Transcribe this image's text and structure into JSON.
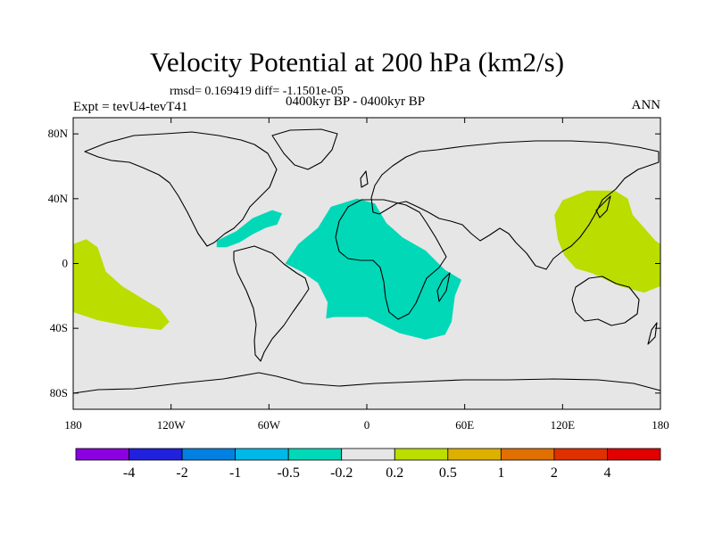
{
  "title": "Velocity Potential at 200 hPa (km2/s)",
  "subtitle": "rmsd= 0.169419 diff= -1.1501e-05",
  "experiment": "Expt = tevU4-tevT41",
  "period": "0400kyr BP - 0400kyr BP",
  "season": "ANN",
  "map": {
    "projection": "cylindrical-equidistant",
    "lon_range": [
      -180,
      180
    ],
    "lat_range": [
      -90,
      90
    ],
    "background_color": "#e6e6e6",
    "x_ticks": [
      {
        "lon": -180,
        "label": "180"
      },
      {
        "lon": -120,
        "label": "120W"
      },
      {
        "lon": -60,
        "label": "60W"
      },
      {
        "lon": 0,
        "label": "0"
      },
      {
        "lon": 60,
        "label": "60E"
      },
      {
        "lon": 120,
        "label": "120E"
      },
      {
        "lon": 180,
        "label": "180"
      }
    ],
    "y_ticks": [
      {
        "lat": 80,
        "label": "80N"
      },
      {
        "lat": 40,
        "label": "40N"
      },
      {
        "lat": 0,
        "label": "0"
      },
      {
        "lat": -40,
        "label": "40S"
      },
      {
        "lat": -80,
        "label": "80S"
      }
    ],
    "regions": [
      {
        "name": "central-pacific-positive",
        "level": "0.2 to 0.5",
        "color": "#bbdd00",
        "lonlat": [
          [
            -180,
            12
          ],
          [
            -172,
            15
          ],
          [
            -165,
            10
          ],
          [
            -160,
            -5
          ],
          [
            -150,
            -14
          ],
          [
            -137,
            -22
          ],
          [
            -127,
            -28
          ],
          [
            -121,
            -36
          ],
          [
            -126,
            -41
          ],
          [
            -145,
            -39
          ],
          [
            -165,
            -35
          ],
          [
            -180,
            -30
          ]
        ]
      },
      {
        "name": "caribbean-negative",
        "level": "-0.5 to -0.2",
        "color": "#00d8b8",
        "lonlat": [
          [
            -92,
            14
          ],
          [
            -80,
            20
          ],
          [
            -70,
            28
          ],
          [
            -58,
            33
          ],
          [
            -52,
            31
          ],
          [
            -55,
            24
          ],
          [
            -62,
            22
          ],
          [
            -70,
            18
          ],
          [
            -78,
            13
          ],
          [
            -86,
            10
          ],
          [
            -92,
            10
          ]
        ]
      },
      {
        "name": "atlantic-africa-negative",
        "level": "-0.5 to -0.2",
        "color": "#00d8b8",
        "lonlat": [
          [
            -50,
            0
          ],
          [
            -42,
            12
          ],
          [
            -30,
            22
          ],
          [
            -22,
            35
          ],
          [
            -6,
            40
          ],
          [
            5,
            37
          ],
          [
            12,
            25
          ],
          [
            22,
            16
          ],
          [
            36,
            8
          ],
          [
            48,
            -4
          ],
          [
            58,
            -10
          ],
          [
            54,
            -20
          ],
          [
            52,
            -36
          ],
          [
            48,
            -44
          ],
          [
            36,
            -47
          ],
          [
            20,
            -43
          ],
          [
            0,
            -33
          ],
          [
            -20,
            -33
          ],
          [
            -25,
            -34
          ],
          [
            -24,
            -24
          ],
          [
            -30,
            -12
          ],
          [
            -40,
            -5
          ],
          [
            -46,
            -2
          ]
        ]
      },
      {
        "name": "west-pacific-positive",
        "level": "0.2 to 0.5",
        "color": "#bbdd00",
        "lonlat": [
          [
            117,
            15
          ],
          [
            115,
            30
          ],
          [
            120,
            39
          ],
          [
            135,
            45
          ],
          [
            152,
            45
          ],
          [
            160,
            40
          ],
          [
            163,
            30
          ],
          [
            170,
            22
          ],
          [
            177,
            14
          ],
          [
            180,
            12
          ],
          [
            180,
            -14
          ],
          [
            170,
            -18
          ],
          [
            155,
            -14
          ],
          [
            138,
            -6
          ],
          [
            128,
            -3
          ],
          [
            121,
            5
          ]
        ]
      }
    ]
  },
  "colorbar": {
    "colors": [
      "#8a00e0",
      "#2020dd",
      "#0080e0",
      "#00b8e8",
      "#00d8b8",
      "#e6e6e6",
      "#bbdd00",
      "#ddb000",
      "#e07000",
      "#e03000",
      "#e00000"
    ],
    "labels": [
      "-4",
      "-2",
      "-1",
      "-0.5",
      "-0.2",
      "0.2",
      "0.5",
      "1",
      "2",
      "4"
    ]
  }
}
